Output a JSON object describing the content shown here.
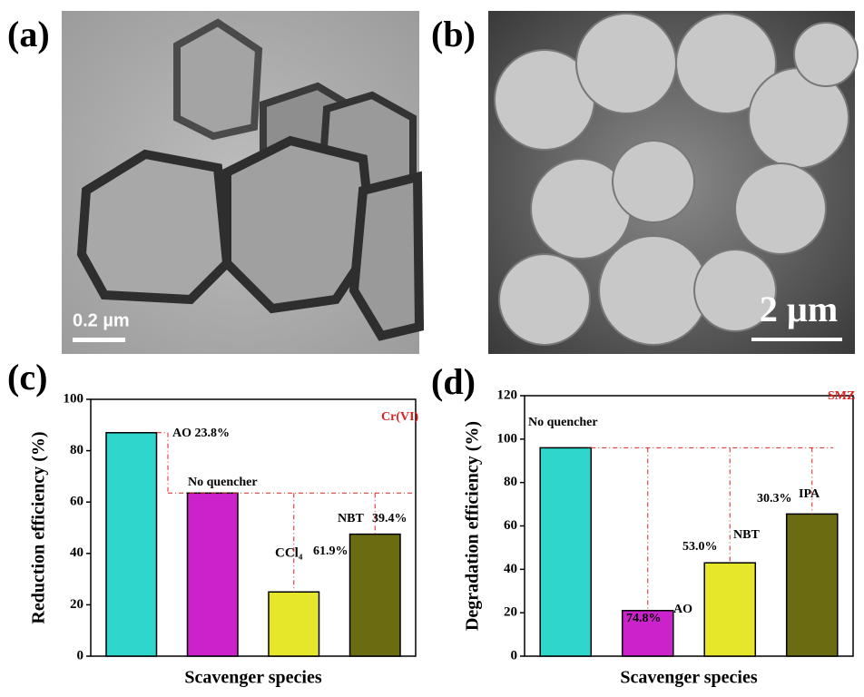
{
  "panels": {
    "labels": [
      "(a)",
      "(b)",
      "(c)",
      "(d)"
    ],
    "scale_bars": [
      "0.2 µm",
      "2 µm"
    ]
  },
  "chart_data": [
    {
      "type": "bar",
      "tag": "Cr(VI)",
      "x_label": "Scavenger species",
      "y_label": "Reduction efficiency (%)",
      "categories": [
        null,
        null,
        null,
        null
      ],
      "values": [
        87,
        63.5,
        25,
        47.5
      ],
      "colors": [
        "#2ed6cc",
        "#cc22cc",
        "#e6e62a",
        "#6b6b12"
      ],
      "ylim": [
        0,
        100
      ],
      "yticks": [
        0,
        20,
        40,
        60,
        80,
        100
      ],
      "annotations": [
        "AO 23.8%",
        "No quencher",
        "CCl₄",
        "61.9%",
        "NBT",
        "39.4%"
      ]
    },
    {
      "type": "bar",
      "tag": "SMZ",
      "x_label": "Scavenger species",
      "y_label": "Degradation efficiency (%)",
      "categories": [
        null,
        null,
        null,
        null
      ],
      "values": [
        96,
        21,
        43,
        65.5
      ],
      "colors": [
        "#2ed6cc",
        "#cc22cc",
        "#e6e62a",
        "#6b6b12"
      ],
      "ylim": [
        0,
        120
      ],
      "yticks": [
        0,
        20,
        40,
        60,
        80,
        100,
        120
      ],
      "annotations": [
        "No quencher",
        "74.8%",
        "AO",
        "53.0%",
        "NBT",
        "30.3%",
        "IPA"
      ]
    }
  ]
}
